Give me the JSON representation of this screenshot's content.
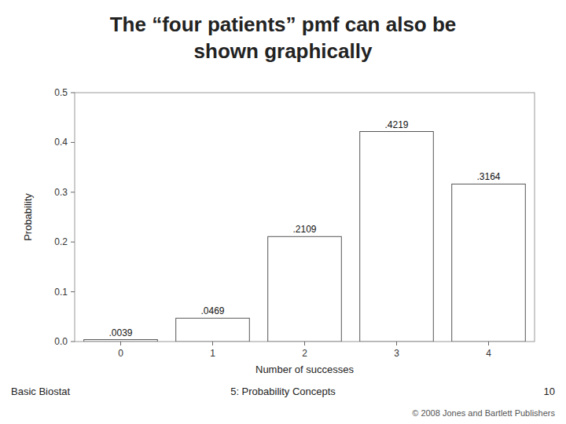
{
  "chart_data": {
    "type": "bar",
    "title": [
      "The “four patients” pmf can also be",
      "shown graphically"
    ],
    "xlabel": "Number of successes",
    "ylabel": "Probability",
    "categories": [
      0,
      1,
      2,
      3,
      4
    ],
    "values": [
      0.0039,
      0.0469,
      0.2109,
      0.4219,
      0.3164
    ],
    "value_labels": [
      ".0039",
      ".0469",
      ".2109",
      ".4219",
      ".3164"
    ],
    "data_labels": true,
    "color": "#ffffff",
    "ylim": [
      0,
      0.5
    ],
    "yticks": [
      {
        "value": 0,
        "label": "0.0"
      },
      0.1,
      0.2,
      0.3,
      0.4,
      0.5
    ],
    "grid": false,
    "annotations": [
      "Basic Biostat",
      "5: Probability Concepts",
      "10",
      "© 2008 Jones and Bartlett Publishers"
    ]
  }
}
